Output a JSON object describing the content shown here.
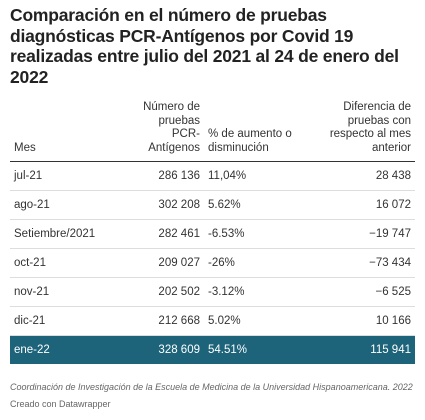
{
  "header": {
    "title": "Comparación en el número de pruebas diagnósticas PCR-Antígenos por Covid 19 realizadas entre julio del 2021 al 24 de enero del 2022"
  },
  "table": {
    "columns": [
      "Mes",
      "Número de pruebas PCR-Antígenos",
      "% de aumento o disminución",
      "Diferencia de pruebas con respecto al mes anterior"
    ],
    "rows": [
      [
        "jul-21",
        "286 136",
        "11,04%",
        "28 438"
      ],
      [
        "ago-21",
        "302 208",
        "5.62%",
        "16 072"
      ],
      [
        "Setiembre/2021",
        "282 461",
        "-6.53%",
        "−19 747"
      ],
      [
        "oct-21",
        "209 027",
        "-26%",
        "−73 434"
      ],
      [
        "nov-21",
        "202 502",
        "-3.12%",
        "−6 525"
      ],
      [
        "dic-21",
        "212 668",
        "5.02%",
        "10 166"
      ],
      [
        "ene-22",
        "328 609",
        "54.51%",
        "115 941"
      ]
    ]
  },
  "footer": {
    "note": "Coordinación de Investigación de la Escuela de Medicina de la Universidad Hispanoamericana. 2022",
    "credit": "Creado con Datawrapper"
  }
}
